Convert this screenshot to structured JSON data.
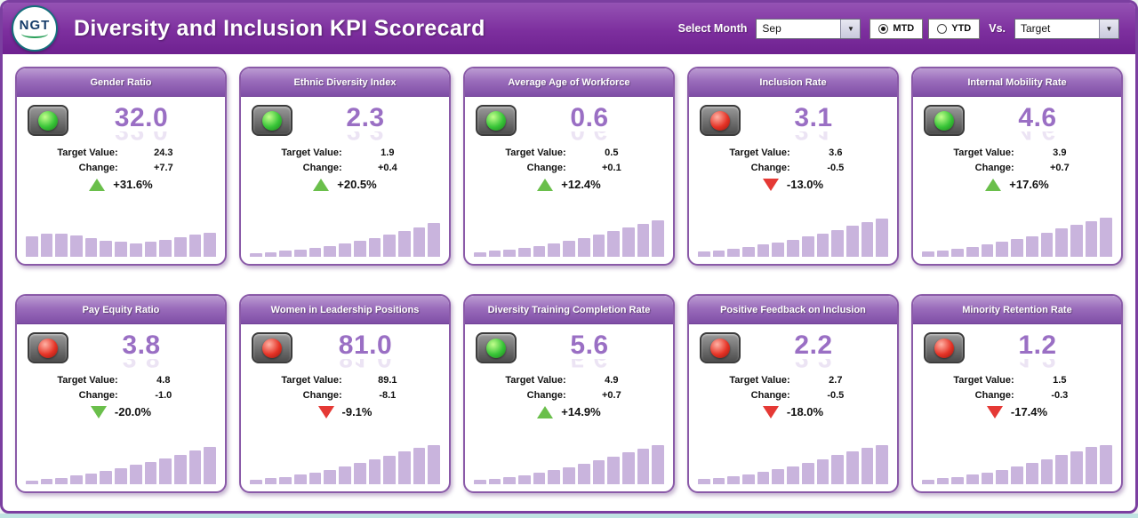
{
  "header": {
    "title": "Diversity and Inclusion KPI Scorecard",
    "logo_text": "NGT",
    "select_month_label": "Select Month",
    "month_value": "Sep",
    "period_options": [
      {
        "label": "MTD",
        "selected": true
      },
      {
        "label": "YTD",
        "selected": false
      }
    ],
    "vs_label": "Vs.",
    "vs_value": "Target"
  },
  "card_labels": {
    "target": "Target Value:",
    "change": "Change:"
  },
  "colors": {
    "accent_purple": "#7b3fa0",
    "kpi_value": "#9a6fc4",
    "bar": "#c9b4dd",
    "green": "#6abf4b",
    "red": "#e53935"
  },
  "cards": [
    {
      "title": "Gender Ratio",
      "value": "32.0",
      "status": "green",
      "target": "24.3",
      "change": "+7.7",
      "pct": "+31.6%",
      "trend": "up",
      "trend_color": "green",
      "bars": [
        52,
        58,
        60,
        55,
        48,
        42,
        38,
        35,
        38,
        44,
        50,
        56,
        62
      ]
    },
    {
      "title": "Ethnic Diversity Index",
      "value": "2.3",
      "status": "green",
      "target": "1.9",
      "change": "+0.4",
      "pct": "+20.5%",
      "trend": "up",
      "trend_color": "green",
      "bars": [
        10,
        12,
        15,
        18,
        22,
        27,
        33,
        40,
        48,
        57,
        66,
        76,
        86
      ]
    },
    {
      "title": "Average Age of Workforce",
      "value": "0.6",
      "status": "green",
      "target": "0.5",
      "change": "+0.1",
      "pct": "+12.4%",
      "trend": "up",
      "trend_color": "green",
      "bars": [
        12,
        15,
        18,
        22,
        27,
        33,
        40,
        48,
        56,
        65,
        74,
        84,
        94
      ]
    },
    {
      "title": "Inclusion Rate",
      "value": "3.1",
      "status": "red",
      "target": "3.6",
      "change": "-0.5",
      "pct": "-13.0%",
      "trend": "down",
      "trend_color": "red",
      "bars": [
        14,
        17,
        21,
        26,
        31,
        37,
        44,
        52,
        60,
        69,
        79,
        89,
        98
      ]
    },
    {
      "title": "Internal Mobility Rate",
      "value": "4.6",
      "status": "green",
      "target": "3.9",
      "change": "+0.7",
      "pct": "+17.6%",
      "trend": "up",
      "trend_color": "green",
      "bars": [
        13,
        16,
        20,
        25,
        31,
        38,
        45,
        53,
        62,
        72,
        82,
        91,
        100
      ]
    },
    {
      "title": "Pay Equity Ratio",
      "value": "3.8",
      "status": "red",
      "target": "4.8",
      "change": "-1.0",
      "pct": "-20.0%",
      "trend": "down",
      "trend_color": "green",
      "bars": [
        10,
        13,
        17,
        22,
        28,
        34,
        41,
        49,
        57,
        66,
        76,
        86,
        96
      ]
    },
    {
      "title": "Women in Leadership Positions",
      "value": "81.0",
      "status": "red",
      "target": "89.1",
      "change": "-8.1",
      "pct": "-9.1%",
      "trend": "down",
      "trend_color": "red",
      "bars": [
        12,
        15,
        19,
        24,
        30,
        37,
        45,
        54,
        63,
        73,
        83,
        93,
        100
      ]
    },
    {
      "title": "Diversity Training Completion Rate",
      "value": "5.6",
      "status": "green",
      "target": "4.9",
      "change": "+0.7",
      "pct": "+14.9%",
      "trend": "up",
      "trend_color": "green",
      "bars": [
        11,
        14,
        18,
        23,
        29,
        36,
        44,
        52,
        61,
        71,
        81,
        91,
        100
      ]
    },
    {
      "title": "Positive Feedback on Inclusion",
      "value": "2.2",
      "status": "red",
      "target": "2.7",
      "change": "-0.5",
      "pct": "-18.0%",
      "trend": "down",
      "trend_color": "red",
      "bars": [
        13,
        16,
        20,
        25,
        31,
        38,
        46,
        55,
        64,
        74,
        84,
        94,
        100
      ]
    },
    {
      "title": "Minority Retention Rate",
      "value": "1.2",
      "status": "red",
      "target": "1.5",
      "change": "-0.3",
      "pct": "-17.4%",
      "trend": "down",
      "trend_color": "red",
      "bars": [
        12,
        15,
        19,
        24,
        30,
        37,
        45,
        54,
        64,
        74,
        85,
        95,
        100
      ]
    }
  ]
}
